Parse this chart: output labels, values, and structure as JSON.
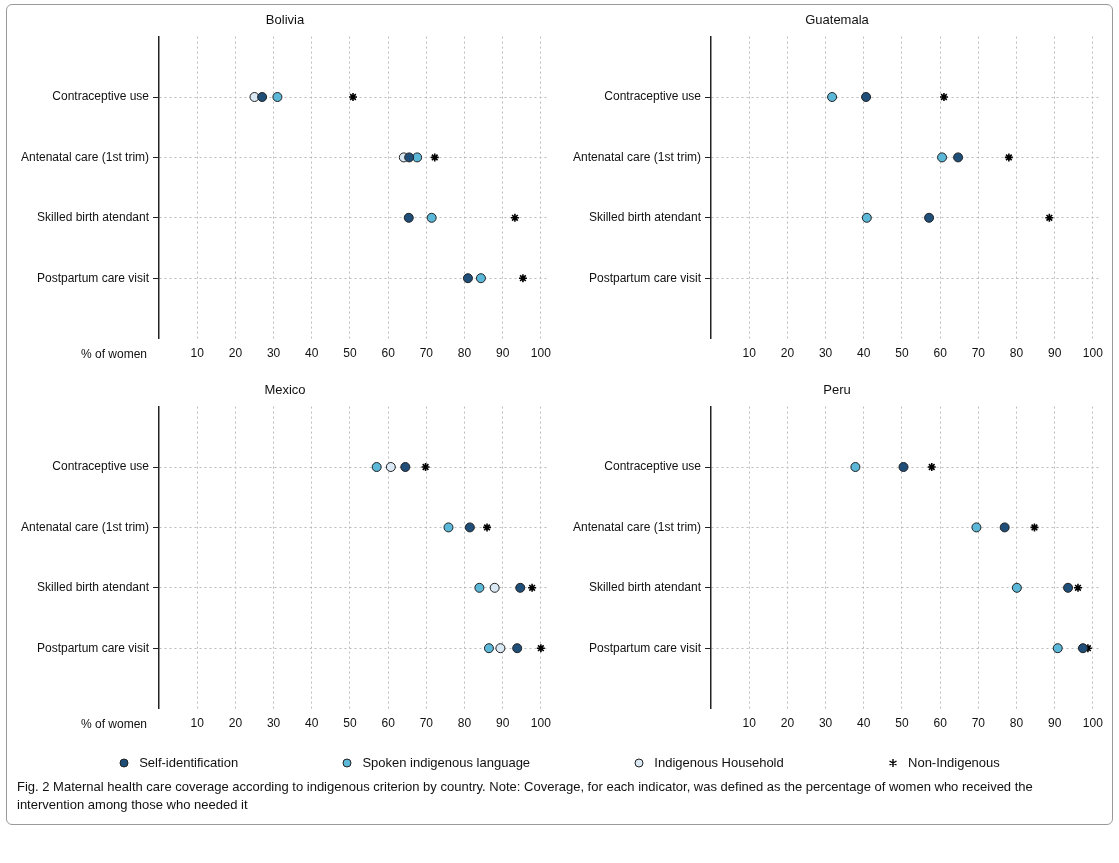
{
  "chart_data": [
    {
      "type": "scatter",
      "title": "Bolivia",
      "orientation": "horizontal",
      "categories": [
        "Contraceptive use",
        "Antenatal care (1st trim)",
        "Skilled birth atendant",
        "Postpartum care visit"
      ],
      "xlabel": "% of women",
      "xlim": [
        0,
        102
      ],
      "xticks": [
        10,
        20,
        30,
        40,
        50,
        60,
        70,
        80,
        90,
        100
      ],
      "grid": true,
      "legend": "bottom",
      "series": [
        {
          "name": "Self-identification",
          "color": "#1f4e79",
          "marker": "circle",
          "values": [
            27,
            65.5,
            65.4,
            80.9
          ]
        },
        {
          "name": "Spoken indigenous language",
          "color": "#5bb8d8",
          "marker": "circle",
          "values": [
            31,
            67.6,
            71.4,
            84.3
          ]
        },
        {
          "name": "Indigenous Household",
          "color": "#dbe9f5",
          "marker": "circle",
          "values": [
            25,
            64.1,
            null,
            null
          ]
        },
        {
          "name": "Non-Indigenous",
          "color": "#000000",
          "marker": "cross",
          "values": [
            50.8,
            72.2,
            93.2,
            95.3
          ]
        }
      ]
    },
    {
      "type": "scatter",
      "title": "Guatemala",
      "orientation": "horizontal",
      "categories": [
        "Contraceptive use",
        "Antenatal care (1st trim)",
        "Skilled birth atendant",
        "Postpartum care visit"
      ],
      "xlim": [
        0,
        102
      ],
      "xticks": [
        10,
        20,
        30,
        40,
        50,
        60,
        70,
        80,
        90,
        100
      ],
      "grid": true,
      "legend": "bottom",
      "series": [
        {
          "name": "Self-identification",
          "color": "#1f4e79",
          "marker": "circle",
          "values": [
            40.6,
            64.7,
            57.1,
            null
          ]
        },
        {
          "name": "Spoken indigenous language",
          "color": "#5bb8d8",
          "marker": "circle",
          "values": [
            31.7,
            60.5,
            40.8,
            null
          ]
        },
        {
          "name": "Non-Indigenous",
          "color": "#000000",
          "marker": "cross",
          "values": [
            61,
            78,
            88.6,
            null
          ]
        }
      ]
    },
    {
      "type": "scatter",
      "title": "Mexico",
      "orientation": "horizontal",
      "categories": [
        "Contraceptive use",
        "Antenatal care (1st trim)",
        "Skilled birth atendant",
        "Postpartum care visit"
      ],
      "xlabel": "% of women",
      "xlim": [
        0,
        102
      ],
      "xticks": [
        10,
        20,
        30,
        40,
        50,
        60,
        70,
        80,
        90,
        100
      ],
      "grid": true,
      "legend": "bottom",
      "series": [
        {
          "name": "Self-identification",
          "color": "#1f4e79",
          "marker": "circle",
          "values": [
            64.5,
            81.4,
            94.6,
            93.8
          ]
        },
        {
          "name": "Spoken indigenous language",
          "color": "#5bb8d8",
          "marker": "circle",
          "values": [
            57,
            75.8,
            83.9,
            86.4
          ]
        },
        {
          "name": "Indigenous Household",
          "color": "#dbe9f5",
          "marker": "circle",
          "values": [
            60.7,
            null,
            87.9,
            89.4
          ]
        },
        {
          "name": "Non-Indigenous",
          "color": "#000000",
          "marker": "cross",
          "values": [
            69.8,
            85.9,
            97.7,
            100
          ]
        }
      ]
    },
    {
      "type": "scatter",
      "title": "Peru",
      "orientation": "horizontal",
      "categories": [
        "Contraceptive use",
        "Antenatal care (1st trim)",
        "Skilled birth atendant",
        "Postpartum care visit"
      ],
      "xlim": [
        0,
        102
      ],
      "xticks": [
        10,
        20,
        30,
        40,
        50,
        60,
        70,
        80,
        90,
        100
      ],
      "grid": true,
      "legend": "bottom",
      "annotations": [
        "Fig. 2 Maternal health care coverage according to indigenous criterion by country. Note: Coverage, for each indicator, was defined as the percentage of women who received the intervention among those who needed it"
      ],
      "series": [
        {
          "name": "Self-identification",
          "color": "#1f4e79",
          "marker": "circle",
          "values": [
            50.4,
            76.9,
            93.5,
            97.4
          ]
        },
        {
          "name": "Spoken indigenous language",
          "color": "#5bb8d8",
          "marker": "circle",
          "values": [
            37.8,
            69.5,
            80.1,
            90.8
          ]
        },
        {
          "name": "Non-Indigenous",
          "color": "#000000",
          "marker": "cross",
          "values": [
            57.8,
            84.7,
            96.1,
            98.7
          ]
        }
      ]
    }
  ]
}
